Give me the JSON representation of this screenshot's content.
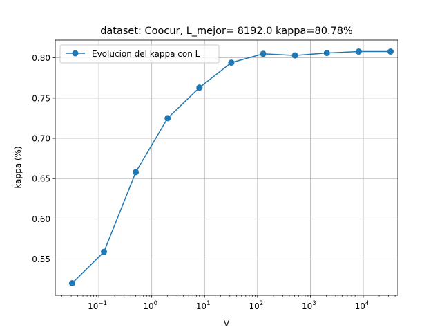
{
  "chart_data": {
    "type": "line",
    "title": "dataset: Coocur, L_mejor= 8192.0 kappa=80.78%",
    "xlabel": "V",
    "ylabel": "kappa (%)",
    "x_scale": "log",
    "xlim": [
      0.015,
      45000
    ],
    "ylim": [
      0.505,
      0.822
    ],
    "grid": true,
    "legend_position": "top-left",
    "color": "#1f77b4",
    "y_ticks": [
      {
        "value": 0.55,
        "label": "0.55"
      },
      {
        "value": 0.6,
        "label": "0.60"
      },
      {
        "value": 0.65,
        "label": "0.65"
      },
      {
        "value": 0.7,
        "label": "0.70"
      },
      {
        "value": 0.75,
        "label": "0.75"
      },
      {
        "value": 0.8,
        "label": "0.80"
      }
    ],
    "x_ticks": [
      {
        "value": 0.1,
        "base": "10",
        "exp": "−1"
      },
      {
        "value": 1,
        "base": "10",
        "exp": "0"
      },
      {
        "value": 10,
        "base": "10",
        "exp": "1"
      },
      {
        "value": 100,
        "base": "10",
        "exp": "2"
      },
      {
        "value": 1000,
        "base": "10",
        "exp": "3"
      },
      {
        "value": 10000,
        "base": "10",
        "exp": "4"
      }
    ],
    "series": [
      {
        "name": "Evolucion del kappa con L",
        "x": [
          0.03125,
          0.125,
          0.5,
          2,
          8,
          32,
          128,
          512,
          2048,
          8192,
          32768
        ],
        "y": [
          0.52,
          0.559,
          0.658,
          0.725,
          0.763,
          0.794,
          0.805,
          0.803,
          0.806,
          0.8078,
          0.8078
        ]
      }
    ]
  }
}
